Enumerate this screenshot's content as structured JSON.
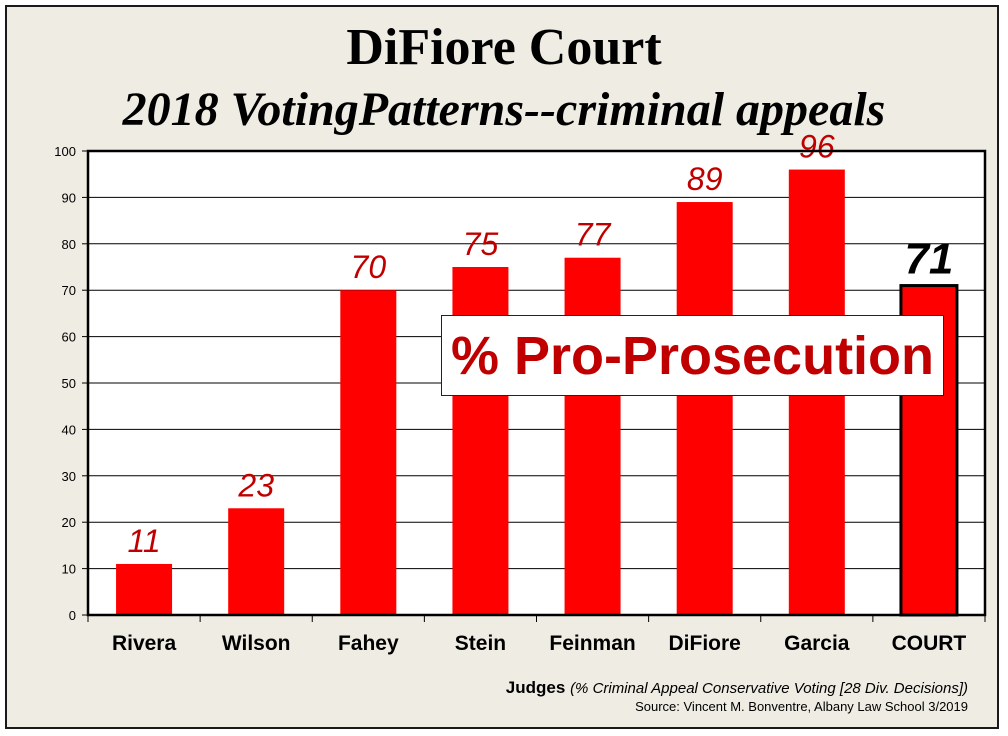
{
  "title": "DiFiore Court",
  "subtitle": "2018 VotingPatterns--criminal appeals",
  "callout": "% Pro-Prosecution",
  "footer": {
    "xlabel": "Judges",
    "note": "(% Criminal Appeal Conservative Voting [28 Div. Decisions])",
    "source": "Source: Vincent M. Bonventre, Albany Law School  3/2019"
  },
  "colors": {
    "bar": "#ff0000",
    "label": "#c00000",
    "court_label": "#000000",
    "background": "#efece3"
  },
  "chart_data": {
    "type": "bar",
    "categories": [
      "Rivera",
      "Wilson",
      "Fahey",
      "Stein",
      "Feinman",
      "DiFiore",
      "Garcia",
      "COURT"
    ],
    "values": [
      11,
      23,
      70,
      75,
      77,
      89,
      96,
      71
    ],
    "ylim": [
      0,
      100
    ],
    "yticks": [
      0,
      10,
      20,
      30,
      40,
      50,
      60,
      70,
      80,
      90,
      100
    ],
    "grid": true,
    "highlighted_category": "COURT"
  }
}
